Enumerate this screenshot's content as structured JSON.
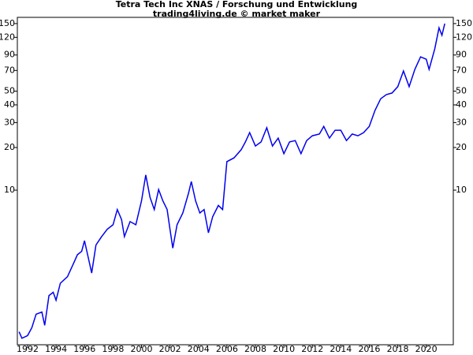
{
  "chart_data": {
    "type": "line",
    "title": "Tetra Tech Inc XNAS / Forschung und Entwicklung",
    "subtitle": "trading4living.de © market maker",
    "log_scale": true,
    "xlim": [
      1991.28,
      2021.9
    ],
    "xticks": [
      1992,
      1994,
      1996,
      1998,
      2000,
      2002,
      2004,
      2006,
      2008,
      2010,
      2012,
      2014,
      2016,
      2018,
      2020
    ],
    "ylim": [
      0.81,
      166
    ],
    "yticks": [
      10,
      20,
      30,
      40,
      50,
      70,
      90,
      120,
      150
    ],
    "series": [
      {
        "name": "Tetra Tech Inc",
        "color": "#0000ee",
        "x": [
          1991.4,
          1991.6,
          1992.0,
          1992.3,
          1992.6,
          1993.0,
          1993.2,
          1993.5,
          1993.8,
          1994.0,
          1994.3,
          1994.8,
          1995.2,
          1995.5,
          1995.8,
          1996.0,
          1996.3,
          1996.5,
          1996.8,
          1997.2,
          1997.6,
          1998.0,
          1998.3,
          1998.6,
          1998.8,
          1999.2,
          1999.6,
          2000.0,
          2000.3,
          2000.6,
          2000.9,
          2001.2,
          2001.5,
          2001.8,
          2002.0,
          2002.2,
          2002.5,
          2002.9,
          2003.3,
          2003.5,
          2003.8,
          2004.1,
          2004.4,
          2004.7,
          2005.0,
          2005.4,
          2005.7,
          2006.0,
          2006.5,
          2007.0,
          2007.3,
          2007.6,
          2008.0,
          2008.4,
          2008.8,
          2009.2,
          2009.6,
          2010.0,
          2010.4,
          2010.8,
          2011.2,
          2011.6,
          2012.0,
          2012.5,
          2012.8,
          2013.2,
          2013.6,
          2014.0,
          2014.4,
          2014.8,
          2015.2,
          2015.6,
          2016.0,
          2016.4,
          2016.8,
          2017.2,
          2017.6,
          2018.0,
          2018.4,
          2018.8,
          2019.2,
          2019.6,
          2020.0,
          2020.2,
          2020.6,
          2020.9,
          2021.1,
          2021.3
        ],
        "values": [
          1.0,
          0.9,
          0.94,
          1.07,
          1.33,
          1.38,
          1.11,
          1.8,
          1.9,
          1.67,
          2.2,
          2.45,
          3.0,
          3.5,
          3.7,
          4.4,
          3.2,
          2.6,
          4.1,
          4.7,
          5.3,
          5.7,
          7.3,
          6.2,
          4.7,
          6.0,
          5.7,
          8.4,
          12.8,
          8.9,
          7.3,
          10.1,
          8.4,
          7.3,
          5.3,
          3.9,
          5.7,
          6.9,
          9.5,
          11.5,
          8.4,
          6.9,
          7.3,
          5.0,
          6.5,
          7.8,
          7.3,
          15.9,
          16.9,
          19.3,
          21.9,
          25.5,
          20.5,
          21.9,
          27.6,
          20.5,
          23.3,
          18.1,
          21.9,
          22.4,
          18.1,
          22.4,
          24.2,
          24.9,
          28.2,
          23.3,
          26.5,
          26.5,
          22.4,
          24.9,
          24.2,
          25.5,
          28.2,
          36.6,
          44.2,
          47.3,
          48.5,
          53.8,
          69.4,
          53.8,
          71.2,
          87.3,
          84.0,
          71.2,
          99.5,
          140,
          124,
          150
        ]
      }
    ]
  }
}
